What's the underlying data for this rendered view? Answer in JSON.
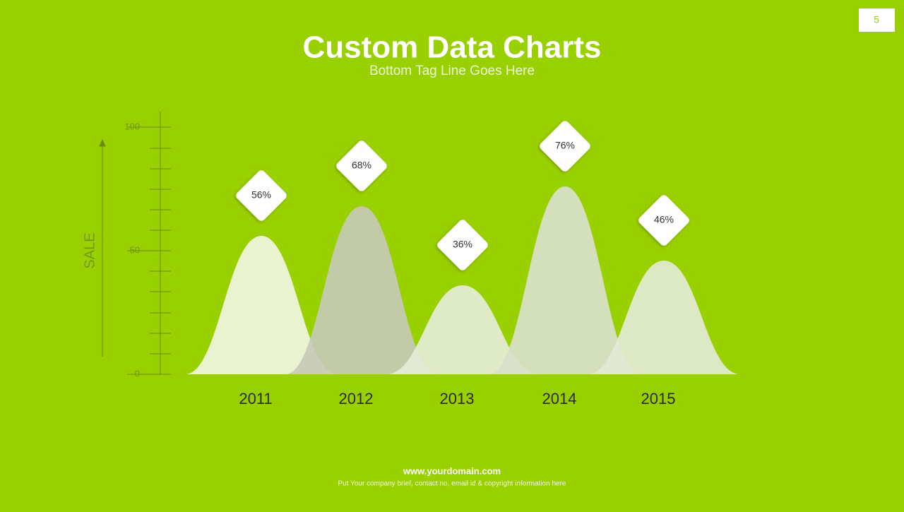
{
  "page_number": "5",
  "footer": {
    "domain": "www.yourdomain.com",
    "brief": "Put Your company brief, contact no, email id  & copyright information here"
  },
  "chart_data": {
    "type": "bell",
    "title": "Custom Data Charts",
    "subtitle": "Bottom Tag Line Goes Here",
    "y_label": "SALE",
    "categories": [
      "2011",
      "2012",
      "2013",
      "2014",
      "2015"
    ],
    "values": [
      56,
      68,
      36,
      76,
      46
    ],
    "value_labels": [
      "56%",
      "68%",
      "36%",
      "76%",
      "46%"
    ],
    "colors": [
      "#f0f5e2",
      "#c6cab6",
      "#e5ebd8",
      "#d9dfcb",
      "#e3e9d5"
    ],
    "ylim": [
      0,
      100
    ],
    "yticks": [
      0,
      50,
      100
    ]
  }
}
